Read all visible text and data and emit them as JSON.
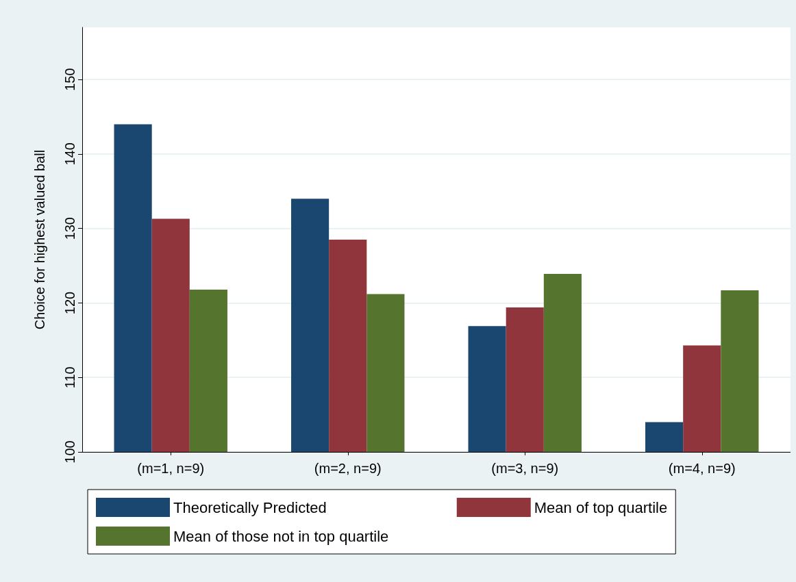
{
  "chart_data": {
    "type": "bar",
    "ylabel": "Choice for highest valued ball",
    "categories": [
      "(m=1, n=9)",
      "(m=2, n=9)",
      "(m=3, n=9)",
      "(m=4, n=9)"
    ],
    "series": [
      {
        "name": "Theoretically Predicted",
        "color": "#1a476f",
        "values": [
          144,
          134,
          116.9,
          104
        ]
      },
      {
        "name": "Mean of top quartile",
        "color": "#90353b",
        "values": [
          131.3,
          128.5,
          119.4,
          114.3
        ]
      },
      {
        "name": "Mean of those not in top quartile",
        "color": "#55752f",
        "values": [
          121.8,
          121.2,
          123.9,
          121.7
        ]
      }
    ],
    "ylim": [
      100,
      157
    ],
    "yticks": [
      100,
      110,
      120,
      130,
      140,
      150
    ],
    "grid": "y",
    "legend": "bottom"
  }
}
